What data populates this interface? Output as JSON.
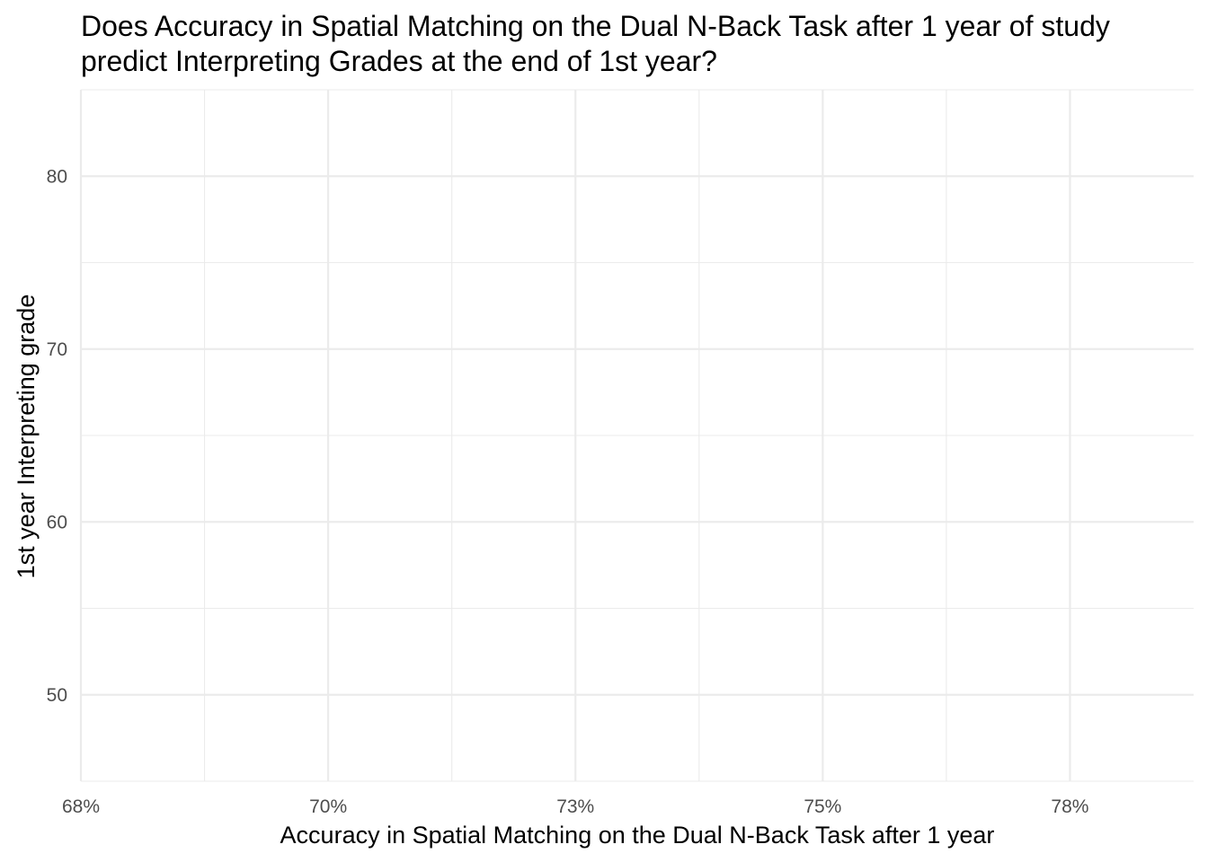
{
  "chart_data": {
    "type": "scatter",
    "title": "Does Accuracy in Spatial Matching on the Dual N-Back Task after 1 year of study",
    "subtitle": "predict Interpreting Grades at the end of 1st year?",
    "xlabel": "Accuracy in Spatial Matching on the Dual N-Back Task after 1 year",
    "ylabel": "1st year Interpreting grade",
    "xlim": [
      0.675,
      0.7875
    ],
    "ylim": [
      45,
      85
    ],
    "x_ticks": [
      0.675,
      0.7,
      0.725,
      0.75,
      0.775
    ],
    "x_tick_labels": [
      "68%",
      "70%",
      "73%",
      "75%",
      "78%"
    ],
    "y_ticks": [
      50,
      60,
      70,
      80
    ],
    "y_tick_labels": [
      "50",
      "60",
      "70",
      "80"
    ],
    "grid": true,
    "series": [
      {
        "x": [],
        "y": []
      }
    ]
  }
}
